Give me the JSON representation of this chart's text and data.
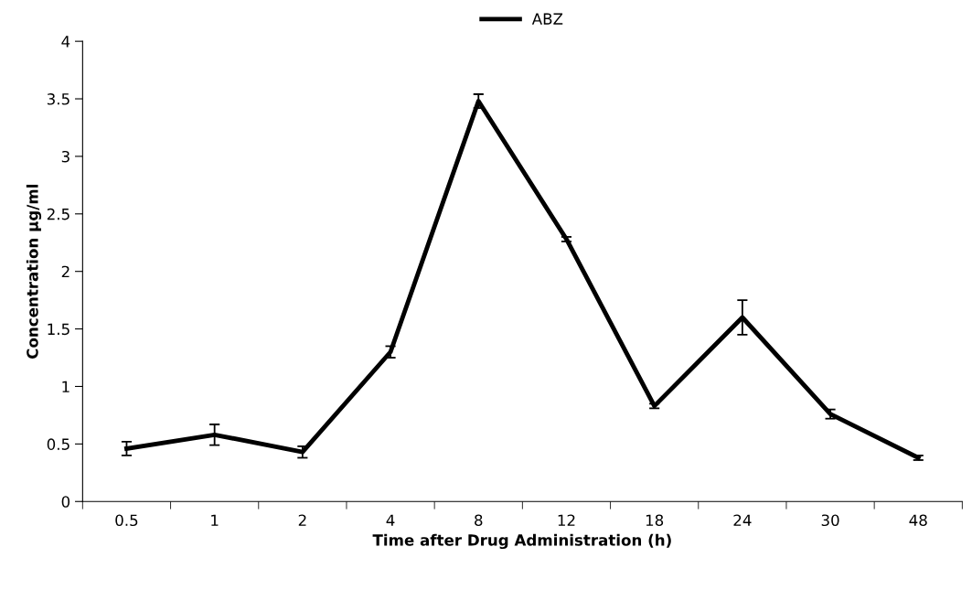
{
  "chart_data": {
    "type": "line",
    "xlabel": "Time after Drug Administration (h)",
    "ylabel": "Concentration µg/ml",
    "categories": [
      "0.5",
      "1",
      "2",
      "4",
      "8",
      "12",
      "18",
      "24",
      "30",
      "48"
    ],
    "series": [
      {
        "name": "ABZ",
        "color": "#000000",
        "values": [
          0.46,
          0.58,
          0.43,
          1.3,
          3.48,
          2.28,
          0.83,
          1.6,
          0.76,
          0.38
        ],
        "errors": [
          0.06,
          0.09,
          0.05,
          0.05,
          0.06,
          0.02,
          0.02,
          0.15,
          0.04,
          0.02
        ]
      }
    ],
    "ylim": [
      0,
      4
    ],
    "yticks": [
      0,
      0.5,
      1,
      1.5,
      2,
      2.5,
      3,
      3.5,
      4
    ],
    "grid": false,
    "legend": "top",
    "marker": "none",
    "line_style": "solid"
  }
}
